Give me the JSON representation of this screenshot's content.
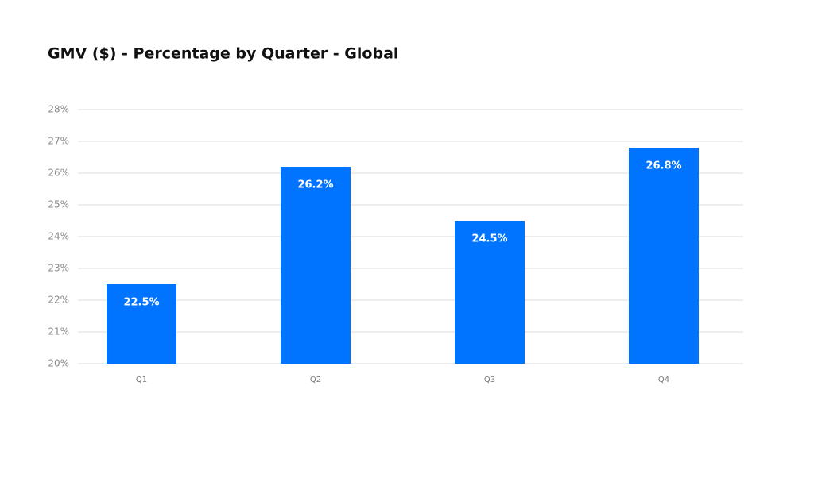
{
  "chart_data": {
    "type": "bar",
    "title": "GMV ($) - Percentage by Quarter - Global",
    "categories": [
      "Q1",
      "Q2",
      "Q3",
      "Q4"
    ],
    "values": [
      22.5,
      26.2,
      24.5,
      26.8
    ],
    "value_labels": [
      "22.5%",
      "26.2%",
      "24.5%",
      "26.8%"
    ],
    "color": "#0073ff",
    "ylim": [
      20,
      28
    ],
    "yticks": [
      {
        "value": 20,
        "label": "20%"
      },
      {
        "value": 21,
        "label": "21%"
      },
      {
        "value": 22,
        "label": "22%"
      },
      {
        "value": 23,
        "label": "23%"
      },
      {
        "value": 24,
        "label": "24%"
      },
      {
        "value": 25,
        "label": "25%"
      },
      {
        "value": 26,
        "label": "26%"
      },
      {
        "value": 27,
        "label": "27%"
      },
      {
        "value": 28,
        "label": "28%"
      }
    ],
    "grid": true
  }
}
